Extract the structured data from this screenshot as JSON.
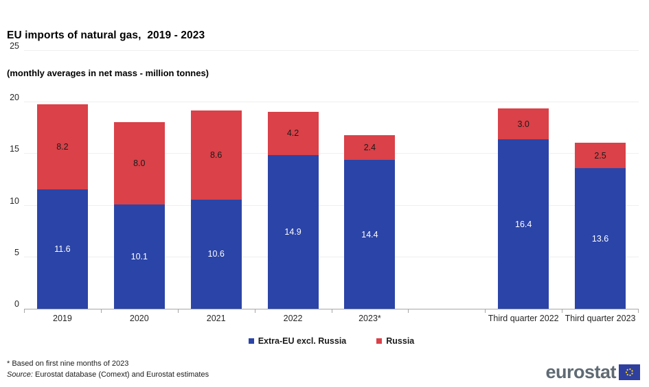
{
  "header": {
    "title": "EU imports of natural gas,  2019 - 2023",
    "subtitle": "(monthly averages in net mass - million tonnes)"
  },
  "chart_data": {
    "type": "bar",
    "stacked": true,
    "title": "EU imports of natural gas, 2019 - 2023",
    "subtitle": "(monthly averages in net mass - million tonnes)",
    "categories": [
      "2019",
      "2020",
      "2021",
      "2022",
      "2023*",
      "",
      "Third quarter 2022",
      "Third quarter 2023"
    ],
    "series": [
      {
        "name": "Extra-EU excl. Russia",
        "color": "#2b44a7",
        "label_color": "#ffffff",
        "values": [
          11.6,
          10.1,
          10.6,
          14.9,
          14.4,
          null,
          16.4,
          13.6
        ]
      },
      {
        "name": "Russia",
        "color": "#da4148",
        "label_color": "#1a1a1a",
        "values": [
          8.2,
          8.0,
          8.6,
          4.2,
          2.4,
          null,
          3.0,
          2.5
        ]
      }
    ],
    "ylim": [
      0,
      25
    ],
    "yticks": [
      0,
      5,
      10,
      15,
      20,
      25
    ],
    "grid": true,
    "legend_position": "bottom",
    "value_label_decimals": 1
  },
  "footnotes": {
    "note": "* Based on first nine months of 2023",
    "source_prefix": "Source:",
    "source_rest": " Eurostat database (Comext) and Eurostat estimates"
  },
  "logo": {
    "text": "eurostat"
  }
}
